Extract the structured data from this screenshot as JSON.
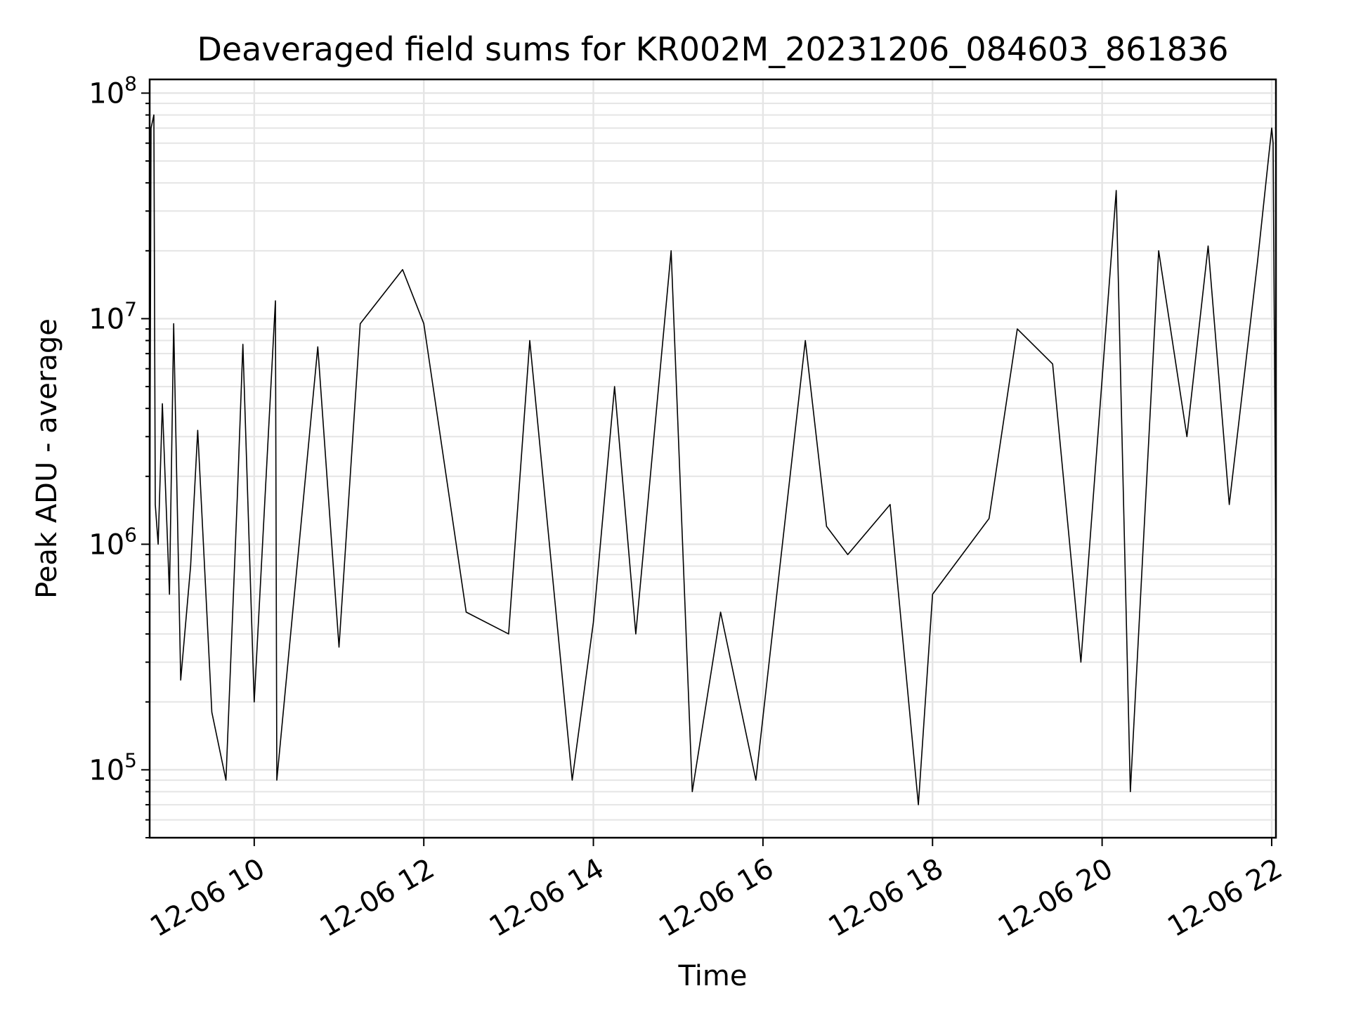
{
  "chart_data": {
    "type": "line",
    "title": "Deaveraged field sums for KR002M_20231206_084603_861836",
    "xlabel": "Time",
    "ylabel": "Peak ADU - average",
    "yscale": "log",
    "ylim": [
      50000,
      115000000
    ],
    "xlim": [
      "2023-12-06 08:46",
      "2023-12-06 22:03"
    ],
    "x_ticks": [
      "12-06 10",
      "12-06 12",
      "12-06 14",
      "12-06 16",
      "12-06 18",
      "12-06 20",
      "12-06 22"
    ],
    "x_tick_times": [
      "2023-12-06 10:00",
      "2023-12-06 12:00",
      "2023-12-06 14:00",
      "2023-12-06 16:00",
      "2023-12-06 18:00",
      "2023-12-06 20:00",
      "2023-12-06 22:00"
    ],
    "y_ticks": [
      {
        "value": 100000,
        "base": "10",
        "exp": "5"
      },
      {
        "value": 1000000,
        "base": "10",
        "exp": "6"
      },
      {
        "value": 10000000,
        "base": "10",
        "exp": "7"
      },
      {
        "value": 100000000,
        "base": "10",
        "exp": "8"
      }
    ],
    "grid": true,
    "line_color": "#000000",
    "grid_color": "#e5e5e5",
    "series": [
      {
        "name": "",
        "points": [
          [
            "2023-12-06 08:46",
            900000
          ],
          [
            "2023-12-06 08:47",
            70000000
          ],
          [
            "2023-12-06 08:49",
            80000000
          ],
          [
            "2023-12-06 08:50",
            1500000
          ],
          [
            "2023-12-06 08:52",
            1000000
          ],
          [
            "2023-12-06 08:55",
            4200000
          ],
          [
            "2023-12-06 09:00",
            600000
          ],
          [
            "2023-12-06 09:03",
            9500000
          ],
          [
            "2023-12-06 09:08",
            250000
          ],
          [
            "2023-12-06 09:15",
            800000
          ],
          [
            "2023-12-06 09:20",
            3200000
          ],
          [
            "2023-12-06 09:30",
            180000
          ],
          [
            "2023-12-06 09:40",
            90000
          ],
          [
            "2023-12-06 09:48",
            1600000
          ],
          [
            "2023-12-06 09:52",
            7700000
          ],
          [
            "2023-12-06 10:00",
            200000
          ],
          [
            "2023-12-06 10:15",
            12000000
          ],
          [
            "2023-12-06 10:16",
            90000
          ],
          [
            "2023-12-06 10:45",
            7500000
          ],
          [
            "2023-12-06 11:00",
            350000
          ],
          [
            "2023-12-06 11:15",
            9500000
          ],
          [
            "2023-12-06 11:45",
            16500000
          ],
          [
            "2023-12-06 12:00",
            9500000
          ],
          [
            "2023-12-06 12:30",
            500000
          ],
          [
            "2023-12-06 13:00",
            400000
          ],
          [
            "2023-12-06 13:15",
            8000000
          ],
          [
            "2023-12-06 13:45",
            90000
          ],
          [
            "2023-12-06 14:00",
            450000
          ],
          [
            "2023-12-06 14:15",
            5000000
          ],
          [
            "2023-12-06 14:30",
            400000
          ],
          [
            "2023-12-06 14:55",
            20000000
          ],
          [
            "2023-12-06 15:10",
            80000
          ],
          [
            "2023-12-06 15:30",
            500000
          ],
          [
            "2023-12-06 15:55",
            90000
          ],
          [
            "2023-12-06 16:30",
            8000000
          ],
          [
            "2023-12-06 16:45",
            1200000
          ],
          [
            "2023-12-06 17:00",
            900000
          ],
          [
            "2023-12-06 17:30",
            1500000
          ],
          [
            "2023-12-06 17:50",
            70000
          ],
          [
            "2023-12-06 18:00",
            600000
          ],
          [
            "2023-12-06 18:40",
            1300000
          ],
          [
            "2023-12-06 19:00",
            9000000
          ],
          [
            "2023-12-06 19:25",
            6300000
          ],
          [
            "2023-12-06 19:45",
            300000
          ],
          [
            "2023-12-06 20:10",
            37000000
          ],
          [
            "2023-12-06 20:20",
            80000
          ],
          [
            "2023-12-06 20:40",
            20000000
          ],
          [
            "2023-12-06 21:00",
            3000000
          ],
          [
            "2023-12-06 21:15",
            21000000
          ],
          [
            "2023-12-06 21:30",
            1500000
          ],
          [
            "2023-12-06 21:50",
            18000000
          ],
          [
            "2023-12-06 22:00",
            70000000
          ],
          [
            "2023-12-06 22:01",
            60000000
          ],
          [
            "2023-12-06 22:03",
            700000
          ]
        ]
      }
    ]
  }
}
